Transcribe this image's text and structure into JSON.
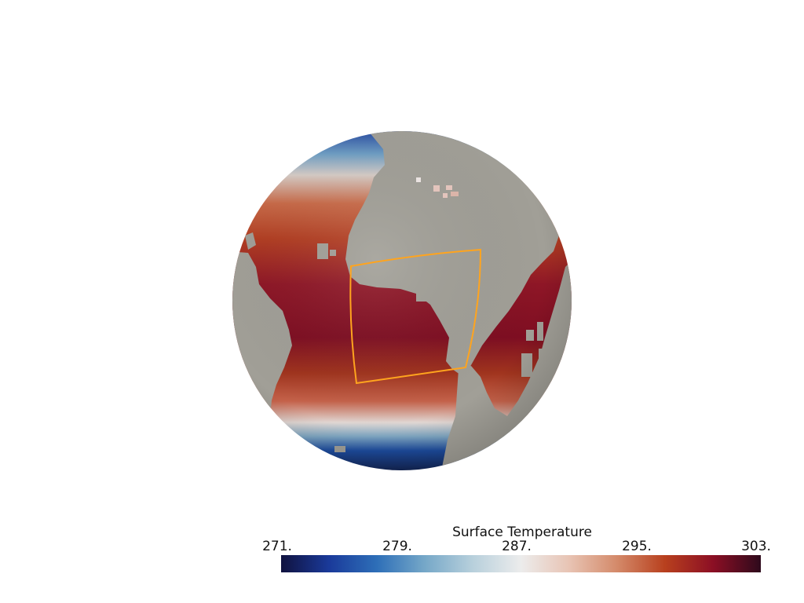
{
  "scalar_bar": {
    "title": "Surface Temperature",
    "ticks": [
      "271.",
      "279.",
      "287.",
      "295.",
      "303."
    ],
    "min": 271,
    "max": 303
  },
  "colormap": {
    "name": "blue-white-red diverging",
    "stops": [
      "#10123f",
      "#1a3a9a",
      "#2e6fb8",
      "#76a8c8",
      "#b8d0dc",
      "#ececec",
      "#e8c4b4",
      "#d48a6a",
      "#b8401e",
      "#8c0f24",
      "#2e0a1c"
    ]
  },
  "colors": {
    "land": "#a19f97",
    "selection_box": "#ffa41e",
    "background": "#ffffff"
  }
}
